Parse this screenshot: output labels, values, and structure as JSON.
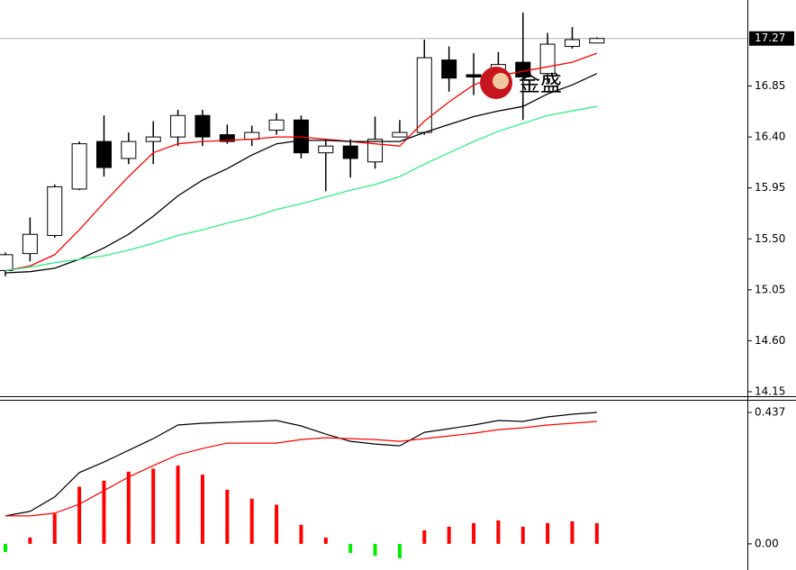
{
  "watermark": "金盛",
  "chart_data": [
    {
      "type": "candlestick",
      "open": [
        15.22,
        15.37,
        15.53,
        15.94,
        16.36,
        16.21,
        16.36,
        16.4,
        16.59,
        16.42,
        16.38,
        16.46,
        16.55,
        16.26,
        16.32,
        16.18,
        16.4,
        16.44,
        17.08,
        16.95,
        16.84,
        17.06,
        16.96,
        17.2,
        17.23
      ],
      "high": [
        15.38,
        15.69,
        15.98,
        16.36,
        16.59,
        16.44,
        16.54,
        16.64,
        16.64,
        16.51,
        16.5,
        16.61,
        16.59,
        16.38,
        16.38,
        16.58,
        16.55,
        17.26,
        17.2,
        17.14,
        17.15,
        17.5,
        17.32,
        17.37,
        17.28
      ],
      "low": [
        15.17,
        15.3,
        15.51,
        15.93,
        16.05,
        16.16,
        16.16,
        16.32,
        16.32,
        16.34,
        16.32,
        16.42,
        16.21,
        15.92,
        16.04,
        16.12,
        16.4,
        16.42,
        16.8,
        16.77,
        16.75,
        16.55,
        16.88,
        17.18,
        17.24
      ],
      "close": [
        15.36,
        15.54,
        15.96,
        16.34,
        16.13,
        16.36,
        16.4,
        16.59,
        16.4,
        16.36,
        16.44,
        16.55,
        16.26,
        16.32,
        16.21,
        16.38,
        16.44,
        17.1,
        16.92,
        16.93,
        17.04,
        16.93,
        17.22,
        17.26,
        17.27
      ],
      "lines": [
        {
          "color": "#ff0000",
          "values": [
            15.22,
            15.26,
            15.36,
            15.58,
            15.82,
            16.05,
            16.26,
            16.34,
            16.36,
            16.37,
            16.38,
            16.4,
            16.4,
            16.38,
            16.36,
            16.34,
            16.32,
            16.54,
            16.71,
            16.86,
            16.94,
            16.98,
            17.02,
            17.06,
            17.14
          ]
        },
        {
          "color": "#000000",
          "values": [
            15.2,
            15.21,
            15.24,
            15.32,
            15.42,
            15.54,
            15.7,
            15.88,
            16.02,
            16.12,
            16.24,
            16.34,
            16.37,
            16.37,
            16.36,
            16.36,
            16.36,
            16.44,
            16.51,
            16.58,
            16.63,
            16.67,
            16.78,
            16.86,
            16.96
          ]
        },
        {
          "color": "#33ee88",
          "values": [
            15.22,
            15.25,
            15.29,
            15.32,
            15.35,
            15.4,
            15.46,
            15.53,
            15.58,
            15.64,
            15.69,
            15.76,
            15.81,
            15.87,
            15.93,
            15.98,
            16.05,
            16.16,
            16.26,
            16.36,
            16.45,
            16.52,
            16.59,
            16.63,
            16.67
          ]
        }
      ],
      "last_price": 17.27,
      "ylim": [
        14.11,
        17.61
      ],
      "yticks": [
        14.15,
        {
          "value": 14.6,
          "label": "14.60"
        },
        15.05,
        {
          "value": 15.5,
          "label": "15.50"
        },
        15.95,
        {
          "value": 16.4,
          "label": "16.40"
        },
        16.85
      ]
    },
    {
      "type": "macd",
      "values": [
        -0.027,
        0.021,
        0.1,
        0.19,
        0.21,
        0.24,
        0.25,
        0.26,
        0.23,
        0.18,
        0.15,
        0.13,
        0.063,
        0.021,
        -0.03,
        -0.04,
        -0.048,
        0.045,
        0.057,
        0.069,
        0.078,
        0.057,
        0.069,
        0.075,
        0.069
      ],
      "positive_color": "#ff0000",
      "negative_color": "#00ee00",
      "lines": [
        {
          "color": "#000000",
          "values": [
            0.093,
            0.108,
            0.156,
            0.237,
            0.272,
            0.311,
            0.35,
            0.395,
            0.401,
            0.404,
            0.407,
            0.41,
            0.392,
            0.365,
            0.341,
            0.332,
            0.326,
            0.371,
            0.383,
            0.395,
            0.41,
            0.407,
            0.422,
            0.431,
            0.437
          ]
        },
        {
          "color": "#ff0000",
          "values": [
            0.093,
            0.093,
            0.102,
            0.132,
            0.177,
            0.222,
            0.26,
            0.296,
            0.317,
            0.335,
            0.335,
            0.335,
            0.347,
            0.353,
            0.35,
            0.347,
            0.341,
            0.35,
            0.359,
            0.368,
            0.38,
            0.386,
            0.395,
            0.401,
            0.407
          ]
        }
      ],
      "ylim": [
        -0.087,
        0.476
      ],
      "yticks": [
        {
          "value": 0,
          "label": "0.00"
        },
        0.437
      ]
    }
  ]
}
